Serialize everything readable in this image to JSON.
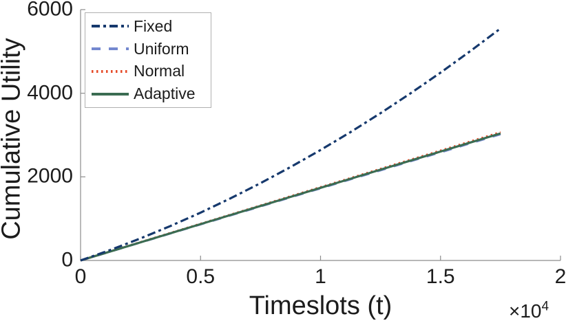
{
  "chart_data": {
    "type": "line",
    "title": "",
    "xlabel": "Timeslots (t)",
    "ylabel": "Cumulative Utility",
    "xlim": [
      0,
      20000
    ],
    "ylim": [
      0,
      6000
    ],
    "grid": false,
    "legend_position": "top-left",
    "x_multiplier": {
      "base": "×10",
      "exp": "4"
    },
    "x_tick_labels": [
      "0",
      "0.5",
      "1",
      "1.5",
      "2"
    ],
    "x_tick_values": [
      0,
      5000,
      10000,
      15000,
      20000
    ],
    "y_tick_labels": [
      "0",
      "2000",
      "4000",
      "6000"
    ],
    "y_tick_values": [
      0,
      2000,
      4000,
      6000
    ],
    "x": [
      0,
      1250,
      2500,
      3750,
      5000,
      6250,
      7500,
      8750,
      10000,
      11250,
      12500,
      13750,
      15000,
      16250,
      17500
    ],
    "series": [
      {
        "name": "Fixed",
        "color": "#16396d",
        "style": "dashdot",
        "values": [
          0,
          253,
          528,
          825,
          1144,
          1486,
          1849,
          2234,
          2642,
          3071,
          3523,
          3997,
          4492,
          5010,
          5550
        ]
      },
      {
        "name": "Uniform",
        "color": "#7488cf",
        "style": "dashed",
        "values": [
          0,
          216,
          431,
          647,
          863,
          1078,
          1294,
          1510,
          1726,
          1941,
          2157,
          2373,
          2588,
          2804,
          3020
        ]
      },
      {
        "name": "Normal",
        "color": "#e64c2a",
        "style": "dotted",
        "values": [
          0,
          219,
          438,
          657,
          876,
          1095,
          1314,
          1533,
          1752,
          1970,
          2189,
          2408,
          2627,
          2846,
          3065
        ]
      },
      {
        "name": "Adaptive",
        "color": "#3b6c52",
        "style": "solid",
        "values": [
          0,
          217,
          434,
          651,
          869,
          1086,
          1303,
          1520,
          1737,
          1954,
          2171,
          2389,
          2606,
          2823,
          3040
        ]
      }
    ],
    "axis_color": "#8c8c8c",
    "text_color": "#1c1c1c"
  }
}
